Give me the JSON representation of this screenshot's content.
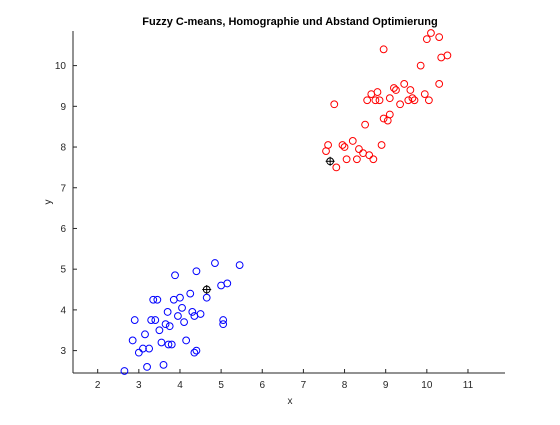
{
  "chart_data": {
    "type": "scatter",
    "title": "Fuzzy C-means, Homographie und Abstand Optimierung",
    "xlabel": "x",
    "ylabel": "y",
    "xlim": [
      1.4,
      11.9
    ],
    "ylim": [
      2.45,
      10.85
    ],
    "xticks": [
      2,
      3,
      4,
      5,
      6,
      7,
      8,
      9,
      10,
      11
    ],
    "yticks": [
      3,
      4,
      5,
      6,
      7,
      8,
      9,
      10
    ],
    "grid": false,
    "legend": "none",
    "colors": {
      "cluster1": "#0000ff",
      "cluster2": "#ff0000",
      "centers": "#000000",
      "axes": "#262626"
    },
    "series": [
      {
        "marker": "circle-open",
        "color": "#0000ff",
        "points": [
          [
            2.65,
            2.5
          ],
          [
            2.85,
            3.25
          ],
          [
            2.9,
            3.75
          ],
          [
            3.0,
            2.95
          ],
          [
            3.1,
            3.05
          ],
          [
            3.15,
            3.4
          ],
          [
            3.2,
            2.6
          ],
          [
            3.25,
            3.05
          ],
          [
            3.3,
            3.75
          ],
          [
            3.35,
            4.25
          ],
          [
            3.4,
            3.75
          ],
          [
            3.45,
            4.25
          ],
          [
            3.5,
            3.5
          ],
          [
            3.55,
            3.2
          ],
          [
            3.6,
            2.65
          ],
          [
            3.65,
            3.65
          ],
          [
            3.7,
            3.95
          ],
          [
            3.72,
            3.15
          ],
          [
            3.75,
            3.6
          ],
          [
            3.8,
            3.15
          ],
          [
            3.85,
            4.25
          ],
          [
            3.88,
            4.85
          ],
          [
            3.95,
            3.85
          ],
          [
            4.0,
            4.3
          ],
          [
            4.05,
            4.05
          ],
          [
            4.1,
            3.7
          ],
          [
            4.15,
            3.25
          ],
          [
            4.25,
            4.4
          ],
          [
            4.3,
            3.95
          ],
          [
            4.35,
            2.95
          ],
          [
            4.35,
            3.85
          ],
          [
            4.4,
            3.0
          ],
          [
            4.4,
            4.95
          ],
          [
            4.5,
            3.9
          ],
          [
            4.65,
            4.3
          ],
          [
            4.85,
            5.15
          ],
          [
            5.0,
            4.6
          ],
          [
            5.05,
            3.75
          ],
          [
            5.05,
            3.65
          ],
          [
            5.15,
            4.65
          ],
          [
            5.45,
            5.1
          ]
        ]
      },
      {
        "marker": "circle-open",
        "color": "#ff0000",
        "points": [
          [
            7.55,
            7.9
          ],
          [
            7.6,
            8.05
          ],
          [
            7.75,
            9.05
          ],
          [
            7.8,
            7.5
          ],
          [
            7.95,
            8.05
          ],
          [
            8.0,
            8.0
          ],
          [
            8.05,
            7.7
          ],
          [
            8.2,
            8.15
          ],
          [
            8.3,
            7.7
          ],
          [
            8.35,
            7.95
          ],
          [
            8.45,
            7.85
          ],
          [
            8.5,
            8.55
          ],
          [
            8.55,
            9.15
          ],
          [
            8.6,
            7.8
          ],
          [
            8.65,
            9.3
          ],
          [
            8.7,
            7.7
          ],
          [
            8.75,
            9.15
          ],
          [
            8.8,
            9.35
          ],
          [
            8.85,
            9.15
          ],
          [
            8.9,
            8.05
          ],
          [
            8.95,
            8.7
          ],
          [
            8.95,
            10.4
          ],
          [
            9.05,
            8.65
          ],
          [
            9.1,
            8.8
          ],
          [
            9.1,
            9.2
          ],
          [
            9.2,
            9.45
          ],
          [
            9.25,
            9.4
          ],
          [
            9.35,
            9.05
          ],
          [
            9.45,
            9.55
          ],
          [
            9.55,
            9.15
          ],
          [
            9.6,
            9.4
          ],
          [
            9.65,
            9.2
          ],
          [
            9.7,
            9.15
          ],
          [
            9.85,
            10.0
          ],
          [
            9.95,
            9.3
          ],
          [
            10.0,
            10.65
          ],
          [
            10.05,
            9.15
          ],
          [
            10.1,
            10.8
          ],
          [
            10.3,
            10.7
          ],
          [
            10.3,
            9.55
          ],
          [
            10.35,
            10.2
          ],
          [
            10.5,
            10.25
          ]
        ]
      },
      {
        "marker": "circle-plus",
        "color": "#000000",
        "points": [
          [
            4.65,
            4.5
          ],
          [
            7.65,
            7.65
          ]
        ]
      }
    ]
  }
}
